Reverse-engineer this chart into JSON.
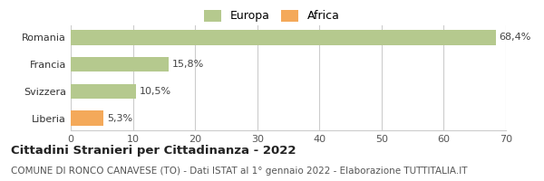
{
  "categories": [
    "Romania",
    "Francia",
    "Svizzera",
    "Liberia"
  ],
  "values": [
    68.4,
    15.8,
    10.5,
    5.3
  ],
  "labels": [
    "68,4%",
    "15,8%",
    "10,5%",
    "5,3%"
  ],
  "bar_colors": [
    "#b5c98e",
    "#b5c98e",
    "#b5c98e",
    "#f4a95a"
  ],
  "legend": [
    {
      "label": "Europa",
      "color": "#b5c98e"
    },
    {
      "label": "Africa",
      "color": "#f4a95a"
    }
  ],
  "xlim": [
    0,
    70
  ],
  "xticks": [
    0,
    10,
    20,
    30,
    40,
    50,
    60,
    70
  ],
  "title": "Cittadini Stranieri per Cittadinanza - 2022",
  "subtitle": "COMUNE DI RONCO CANAVESE (TO) - Dati ISTAT al 1° gennaio 2022 - Elaborazione TUTTITALIA.IT",
  "title_fontsize": 9.5,
  "subtitle_fontsize": 7.5,
  "label_fontsize": 8,
  "tick_fontsize": 8,
  "background_color": "#ffffff",
  "grid_color": "#cccccc"
}
